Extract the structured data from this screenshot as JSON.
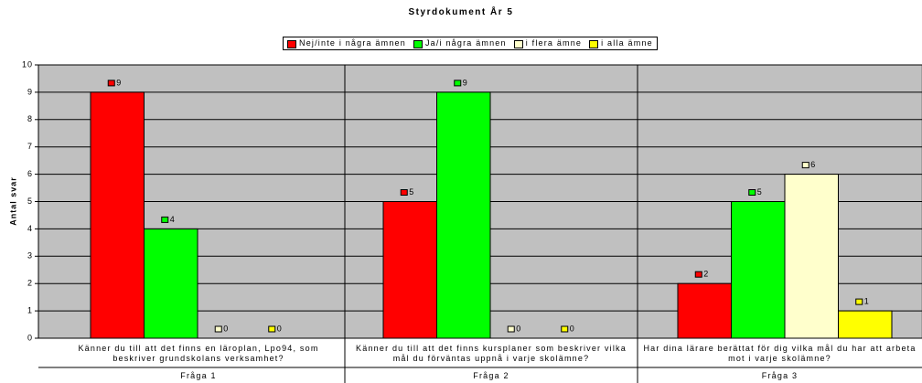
{
  "chart_data": {
    "type": "bar",
    "title": "Styrdokument År 5",
    "ylabel": "Antal svar",
    "categories": [
      "Känner du till att det finns en läroplan, Lpo94, som beskriver grundskolans verksamhet?",
      "Känner du till att det finns kursplaner som beskriver vilka mål du förväntas uppnå i varje skolämne?",
      "Har dina lärare berättat för dig vilka mål du har att arbeta mot i varje skolämne?"
    ],
    "category_groups": [
      "Fråga 1",
      "Fråga 2",
      "Fråga 3"
    ],
    "series": [
      {
        "name": "Nej/inte i några ämnen",
        "color": "#ff0000",
        "values": [
          9,
          5,
          2
        ]
      },
      {
        "name": "Ja/i några ämnen",
        "color": "#00ff00",
        "values": [
          4,
          9,
          5
        ]
      },
      {
        "name": "i flera ämne",
        "color": "#ffffcc",
        "values": [
          0,
          0,
          6
        ]
      },
      {
        "name": "i alla ämne",
        "color": "#ffff00",
        "values": [
          0,
          0,
          1
        ]
      }
    ],
    "ylim": [
      0,
      10
    ],
    "yticks": [
      0,
      1,
      2,
      3,
      4,
      5,
      6,
      7,
      8,
      9,
      10
    ],
    "grid": true,
    "legend": "top"
  }
}
